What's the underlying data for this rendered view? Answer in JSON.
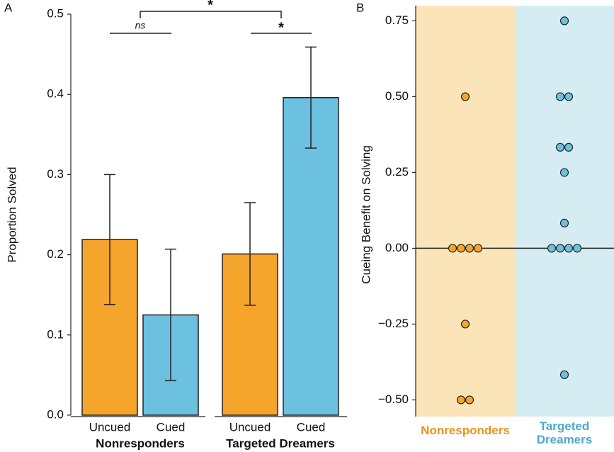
{
  "chart_data": [
    {
      "type": "bar",
      "panel": "A",
      "ylabel": "Proportion Solved",
      "categories": [
        "Uncued",
        "Cued",
        "Uncued",
        "Cued"
      ],
      "colors": [
        "#f5a42c",
        "#6cc0e0",
        "#f5a42c",
        "#6cc0e0"
      ],
      "values": [
        0.219,
        0.125,
        0.201,
        0.396
      ],
      "errors": [
        0.081,
        0.082,
        0.064,
        0.063
      ],
      "groups": [
        {
          "label": "Nonresponders",
          "color": "#e8931e"
        },
        {
          "label": "Targeted Dreamers",
          "color": "#4da9c9"
        }
      ],
      "annotations": [
        "ns",
        "*",
        "*"
      ],
      "ylim": [
        0,
        0.5
      ],
      "yticks": [
        {
          "value": 0,
          "label": "0.0"
        },
        0.1,
        0.2,
        0.3,
        0.4,
        0.5
      ]
    },
    {
      "type": "strip",
      "panel": "B",
      "ylabel": "Cueing Benefit on Solving",
      "categories": [
        "Nonresponders",
        "Targeted Dreamers"
      ],
      "label_colors": [
        "#e8931e",
        "#4da9c9"
      ],
      "backgrounds": [
        "#fbe4b8",
        "#d5ecf3"
      ],
      "series": [
        {
          "color": "#f5a42c",
          "values": [
            0.5,
            0,
            0,
            0,
            0,
            -0.25,
            -0.5,
            -0.5
          ]
        },
        {
          "color": "#6cc0e0",
          "values": [
            0.75,
            0.5,
            0.5,
            0.333,
            0.333,
            0.25,
            0.083,
            0,
            0,
            0,
            0,
            -0.417
          ]
        }
      ],
      "ylim": [
        -0.555,
        0.8
      ],
      "yticks": [
        {
          "value": -0.5,
          "label": "−0.50"
        },
        {
          "value": -0.25,
          "label": "−0.25"
        },
        {
          "value": 0,
          "label": "0.00"
        },
        {
          "value": 0.25,
          "label": "0.25"
        },
        {
          "value": 0.5,
          "label": "0.50"
        },
        {
          "value": 0.75,
          "label": "0.75"
        }
      ]
    }
  ]
}
